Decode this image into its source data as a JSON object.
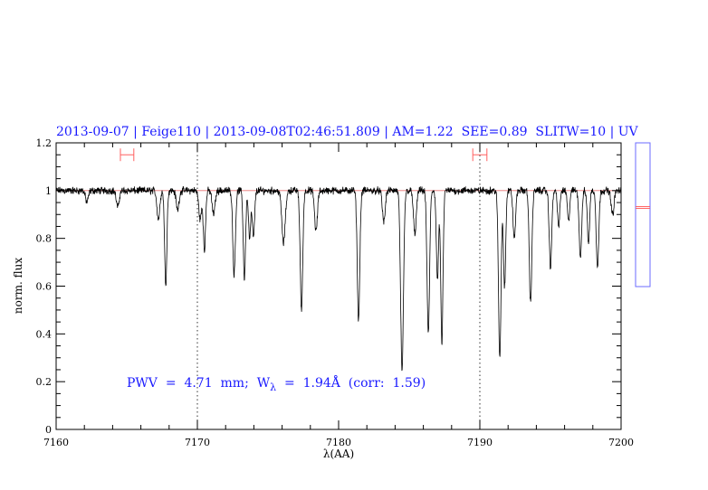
{
  "chart_data": {
    "type": "line",
    "title": "2013-09-07 | Feige110 | 2013-09-08T02:46:51.809 | AM=1.22  SEE=0.89  SLITW=10 | UV",
    "xlabel": "λ(AA)",
    "ylabel": "norm. flux",
    "xlim": [
      7160,
      7200
    ],
    "ylim": [
      0,
      1.2
    ],
    "xticks": [
      "7160",
      "7170",
      "7180",
      "7190",
      "7200"
    ],
    "yticks": [
      "0",
      "0.2",
      "0.4",
      "0.6",
      "0.8",
      "1",
      "1.2"
    ],
    "continuum": 1.0,
    "dotted_vlines": [
      7170,
      7190
    ],
    "annotation": {
      "prefix": "PWV  =  4.71  mm;  W",
      "sub": "λ",
      "suffix": "  =  1.94Å  (corr:  1.59)"
    },
    "error_bars": [
      {
        "x_range": [
          7164.55,
          7165.5
        ],
        "y": 1.15
      },
      {
        "x_range": [
          7189.5,
          7190.5
        ],
        "y": 1.15
      }
    ],
    "side_panel": {
      "range": [
        0.6,
        1.2
      ],
      "marker": 0.93
    },
    "absorption_lines": [
      [
        7162.18,
        0.05,
        0.1
      ],
      [
        7164.36,
        0.07,
        0.1
      ],
      [
        7167.24,
        0.12,
        0.1
      ],
      [
        7167.76,
        0.39,
        0.08
      ],
      [
        7168.6,
        0.08,
        0.1
      ],
      [
        7170.2,
        0.12,
        0.1
      ],
      [
        7170.5,
        0.25,
        0.08
      ],
      [
        7171.15,
        0.1,
        0.1
      ],
      [
        7172.6,
        0.35,
        0.09
      ],
      [
        7173.33,
        0.37,
        0.08
      ],
      [
        7173.7,
        0.2,
        0.08
      ],
      [
        7173.97,
        0.2,
        0.08
      ],
      [
        7176.1,
        0.22,
        0.12
      ],
      [
        7177.37,
        0.5,
        0.09
      ],
      [
        7178.4,
        0.17,
        0.1
      ],
      [
        7181.41,
        0.54,
        0.09
      ],
      [
        7183.2,
        0.13,
        0.1
      ],
      [
        7184.49,
        0.76,
        0.1
      ],
      [
        7185.4,
        0.18,
        0.1
      ],
      [
        7186.35,
        0.6,
        0.09
      ],
      [
        7187.0,
        0.38,
        0.08
      ],
      [
        7187.31,
        0.64,
        0.08
      ],
      [
        7191.41,
        0.7,
        0.09
      ],
      [
        7191.75,
        0.4,
        0.08
      ],
      [
        7192.44,
        0.2,
        0.09
      ],
      [
        7193.59,
        0.47,
        0.09
      ],
      [
        7195.0,
        0.32,
        0.09
      ],
      [
        7195.58,
        0.15,
        0.08
      ],
      [
        7196.28,
        0.13,
        0.08
      ],
      [
        7197.12,
        0.28,
        0.09
      ],
      [
        7197.69,
        0.22,
        0.08
      ],
      [
        7198.33,
        0.32,
        0.09
      ],
      [
        7199.4,
        0.1,
        0.1
      ]
    ],
    "noise_level": 0.012,
    "colors": {
      "spectrum": "#000000",
      "continuum": "#e05050",
      "text": "#1a1aff",
      "errorbar": "#ff6060",
      "panel": "#6b6bff"
    }
  }
}
